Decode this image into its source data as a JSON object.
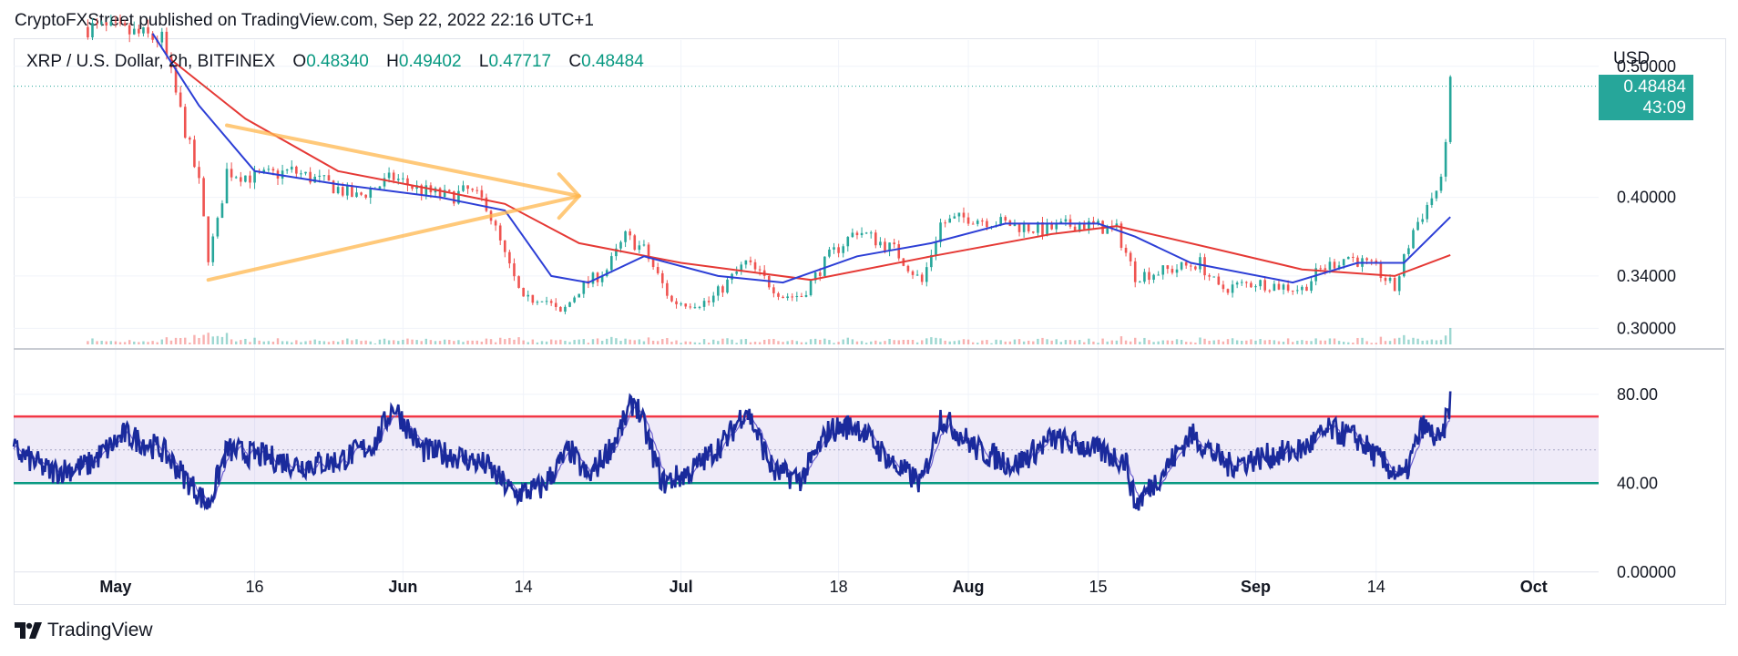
{
  "header": {
    "published_line": "CryptoFXStreet published on TradingView.com, Sep 22, 2022 22:16 UTC+1"
  },
  "legend": {
    "symbol": "XRP / U.S. Dollar, 2h, BITFINEX",
    "open_label": "O",
    "open": "0.48340",
    "high_label": "H",
    "high": "0.49402",
    "low_label": "L",
    "low": "0.47717",
    "close_label": "C",
    "close": "0.48484"
  },
  "price_axis": {
    "currency": "USD",
    "ticks": [
      "0.50000",
      "0.40000",
      "0.34000",
      "0.30000"
    ]
  },
  "last_price": {
    "value": "0.48484",
    "countdown": "43:09"
  },
  "rsi_axis": {
    "ticks": [
      "80.00",
      "40.00",
      "0.00000"
    ]
  },
  "time_axis": {
    "labels": [
      {
        "text": "May",
        "bold": true
      },
      {
        "text": "16",
        "bold": false
      },
      {
        "text": "Jun",
        "bold": true
      },
      {
        "text": "14",
        "bold": false
      },
      {
        "text": "Jul",
        "bold": true
      },
      {
        "text": "18",
        "bold": false
      },
      {
        "text": "Aug",
        "bold": true
      },
      {
        "text": "15",
        "bold": false
      },
      {
        "text": "Sep",
        "bold": true
      },
      {
        "text": "14",
        "bold": false
      },
      {
        "text": "Oct",
        "bold": true
      }
    ]
  },
  "footer": {
    "brand": "TradingView"
  },
  "colors": {
    "up": "#26a69a",
    "down": "#ef5350",
    "ma_fast": "#2d3fd6",
    "ma_slow": "#e53935",
    "rsi": "#1a2a9c",
    "rsi_upper": "#f23645",
    "rsi_lower": "#089981",
    "pattern": "#ffb74d"
  },
  "chart_data": [
    {
      "type": "candlestick",
      "series_kind": "XRP/USD 2h price with moving averages and triangle drawing",
      "ylim": [
        0.285,
        0.52
      ],
      "x_range": [
        "2022-04-20",
        "2022-10-08"
      ],
      "x_ticks": [
        "May",
        "16",
        "Jun",
        "14",
        "Jul",
        "18",
        "Aug",
        "15",
        "Sep",
        "14",
        "Oct"
      ],
      "y_ticks": [
        0.3,
        0.34,
        0.4,
        0.5
      ],
      "last_close": 0.48484,
      "ohlc_last": {
        "open": 0.4834,
        "high": 0.49402,
        "low": 0.47717,
        "close": 0.48484
      },
      "price_path": [
        [
          "2022-04-28",
          0.53
        ],
        [
          "2022-05-03",
          0.525
        ],
        [
          "2022-05-06",
          0.52
        ],
        [
          "2022-05-08",
          0.465
        ],
        [
          "2022-05-10",
          0.41
        ],
        [
          "2022-05-11",
          0.355
        ],
        [
          "2022-05-12",
          0.38
        ],
        [
          "2022-05-13",
          0.42
        ],
        [
          "2022-05-16",
          0.415
        ],
        [
          "2022-05-20",
          0.42
        ],
        [
          "2022-05-24",
          0.41
        ],
        [
          "2022-05-27",
          0.4
        ],
        [
          "2022-05-31",
          0.415
        ],
        [
          "2022-06-03",
          0.405
        ],
        [
          "2022-06-06",
          0.4
        ],
        [
          "2022-06-08",
          0.405
        ],
        [
          "2022-06-10",
          0.395
        ],
        [
          "2022-06-12",
          0.355
        ],
        [
          "2022-06-14",
          0.32
        ],
        [
          "2022-06-16",
          0.325
        ],
        [
          "2022-06-18",
          0.31
        ],
        [
          "2022-06-20",
          0.33
        ],
        [
          "2022-06-23",
          0.345
        ],
        [
          "2022-06-25",
          0.37
        ],
        [
          "2022-06-27",
          0.36
        ],
        [
          "2022-06-30",
          0.32
        ],
        [
          "2022-07-04",
          0.32
        ],
        [
          "2022-07-08",
          0.35
        ],
        [
          "2022-07-12",
          0.325
        ],
        [
          "2022-07-14",
          0.325
        ],
        [
          "2022-07-17",
          0.355
        ],
        [
          "2022-07-20",
          0.375
        ],
        [
          "2022-07-24",
          0.36
        ],
        [
          "2022-07-27",
          0.335
        ],
        [
          "2022-07-29",
          0.38
        ],
        [
          "2022-08-01",
          0.385
        ],
        [
          "2022-08-05",
          0.38
        ],
        [
          "2022-08-09",
          0.375
        ],
        [
          "2022-08-13",
          0.38
        ],
        [
          "2022-08-17",
          0.375
        ],
        [
          "2022-08-19",
          0.34
        ],
        [
          "2022-08-23",
          0.345
        ],
        [
          "2022-08-26",
          0.35
        ],
        [
          "2022-08-28",
          0.33
        ],
        [
          "2022-09-01",
          0.335
        ],
        [
          "2022-09-06",
          0.33
        ],
        [
          "2022-09-08",
          0.345
        ],
        [
          "2022-09-11",
          0.355
        ],
        [
          "2022-09-14",
          0.345
        ],
        [
          "2022-09-16",
          0.33
        ],
        [
          "2022-09-18",
          0.375
        ],
        [
          "2022-09-20",
          0.4
        ],
        [
          "2022-09-21",
          0.41
        ],
        [
          "2022-09-22",
          0.485
        ]
      ],
      "ma_fast_path": [
        [
          "2022-05-05",
          0.525
        ],
        [
          "2022-05-10",
          0.47
        ],
        [
          "2022-05-16",
          0.42
        ],
        [
          "2022-05-25",
          0.41
        ],
        [
          "2022-06-05",
          0.4
        ],
        [
          "2022-06-12",
          0.39
        ],
        [
          "2022-06-17",
          0.34
        ],
        [
          "2022-06-21",
          0.335
        ],
        [
          "2022-06-27",
          0.355
        ],
        [
          "2022-07-05",
          0.34
        ],
        [
          "2022-07-12",
          0.335
        ],
        [
          "2022-07-20",
          0.355
        ],
        [
          "2022-07-28",
          0.365
        ],
        [
          "2022-08-05",
          0.38
        ],
        [
          "2022-08-15",
          0.38
        ],
        [
          "2022-08-19",
          0.37
        ],
        [
          "2022-08-25",
          0.35
        ],
        [
          "2022-09-05",
          0.335
        ],
        [
          "2022-09-12",
          0.35
        ],
        [
          "2022-09-17",
          0.35
        ],
        [
          "2022-09-22",
          0.385
        ]
      ],
      "ma_slow_path": [
        [
          "2022-05-07",
          0.505
        ],
        [
          "2022-05-15",
          0.46
        ],
        [
          "2022-05-25",
          0.42
        ],
        [
          "2022-06-05",
          0.405
        ],
        [
          "2022-06-12",
          0.395
        ],
        [
          "2022-06-20",
          0.365
        ],
        [
          "2022-07-01",
          0.35
        ],
        [
          "2022-07-15",
          0.337
        ],
        [
          "2022-07-28",
          0.355
        ],
        [
          "2022-08-10",
          0.372
        ],
        [
          "2022-08-17",
          0.378
        ],
        [
          "2022-08-28",
          0.36
        ],
        [
          "2022-09-06",
          0.345
        ],
        [
          "2022-09-16",
          0.34
        ],
        [
          "2022-09-22",
          0.356
        ]
      ],
      "triangle_drawing": {
        "upper": [
          [
            "2022-05-13",
            0.455
          ],
          [
            "2022-06-20",
            0.401
          ]
        ],
        "lower": [
          [
            "2022-05-11",
            0.337
          ],
          [
            "2022-06-20",
            0.401
          ]
        ]
      }
    },
    {
      "type": "line",
      "series_kind": "RSI oscillator",
      "ylim": [
        -5,
        100
      ],
      "upper_band": 70,
      "lower_band": 40,
      "y_ticks": [
        80,
        40,
        0
      ],
      "rsi_path": [
        [
          "2022-04-20",
          55
        ],
        [
          "2022-04-24",
          45
        ],
        [
          "2022-04-28",
          48
        ],
        [
          "2022-05-02",
          62
        ],
        [
          "2022-05-06",
          55
        ],
        [
          "2022-05-09",
          40
        ],
        [
          "2022-05-11",
          30
        ],
        [
          "2022-05-13",
          55
        ],
        [
          "2022-05-17",
          52
        ],
        [
          "2022-05-21",
          48
        ],
        [
          "2022-05-25",
          50
        ],
        [
          "2022-05-29",
          58
        ],
        [
          "2022-05-31",
          75
        ],
        [
          "2022-06-03",
          55
        ],
        [
          "2022-06-07",
          52
        ],
        [
          "2022-06-10",
          48
        ],
        [
          "2022-06-13",
          35
        ],
        [
          "2022-06-16",
          38
        ],
        [
          "2022-06-19",
          55
        ],
        [
          "2022-06-21",
          42
        ],
        [
          "2022-06-24",
          60
        ],
        [
          "2022-06-26",
          78
        ],
        [
          "2022-06-29",
          40
        ],
        [
          "2022-07-02",
          45
        ],
        [
          "2022-07-06",
          60
        ],
        [
          "2022-07-08",
          74
        ],
        [
          "2022-07-11",
          45
        ],
        [
          "2022-07-14",
          42
        ],
        [
          "2022-07-17",
          64
        ],
        [
          "2022-07-20",
          66
        ],
        [
          "2022-07-24",
          48
        ],
        [
          "2022-07-27",
          40
        ],
        [
          "2022-07-29",
          70
        ],
        [
          "2022-08-02",
          55
        ],
        [
          "2022-08-06",
          48
        ],
        [
          "2022-08-10",
          60
        ],
        [
          "2022-08-14",
          56
        ],
        [
          "2022-08-18",
          50
        ],
        [
          "2022-08-19",
          30
        ],
        [
          "2022-08-22",
          45
        ],
        [
          "2022-08-25",
          62
        ],
        [
          "2022-08-29",
          48
        ],
        [
          "2022-09-02",
          52
        ],
        [
          "2022-09-06",
          55
        ],
        [
          "2022-09-09",
          64
        ],
        [
          "2022-09-12",
          60
        ],
        [
          "2022-09-15",
          48
        ],
        [
          "2022-09-17",
          42
        ],
        [
          "2022-09-19",
          66
        ],
        [
          "2022-09-21",
          58
        ],
        [
          "2022-09-22",
          77
        ]
      ]
    }
  ]
}
